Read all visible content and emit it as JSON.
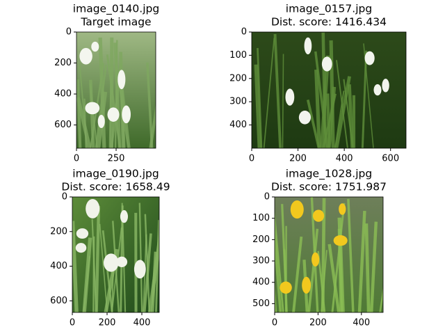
{
  "chart_data": [
    {
      "type": "image",
      "title": "image_0140.jpg",
      "subtitle": "Target image",
      "xlim": [
        0,
        500
      ],
      "ylim": [
        750,
        0
      ],
      "xticks": [
        0,
        250
      ],
      "yticks": [
        0,
        200,
        400,
        600
      ]
    },
    {
      "type": "image",
      "title": "image_0157.jpg",
      "subtitle": "Dist. score: 1416.434",
      "xlim": [
        0,
        667
      ],
      "ylim": [
        500,
        0
      ],
      "xticks": [
        0,
        200,
        400,
        600
      ],
      "yticks": [
        0,
        100,
        200,
        300,
        400
      ]
    },
    {
      "type": "image",
      "title": "image_0190.jpg",
      "subtitle": "Dist. score: 1658.49",
      "xlim": [
        0,
        500
      ],
      "ylim": [
        667,
        0
      ],
      "xticks": [
        0,
        200,
        400
      ],
      "yticks": [
        0,
        200,
        400,
        600
      ]
    },
    {
      "type": "image",
      "title": "image_1028.jpg",
      "subtitle": "Dist. score: 1751.987",
      "xlim": [
        0,
        500
      ],
      "ylim": [
        541,
        0
      ],
      "xticks": [
        0,
        200,
        400
      ],
      "yticks": [
        0,
        100,
        200,
        300,
        400,
        500
      ]
    }
  ]
}
